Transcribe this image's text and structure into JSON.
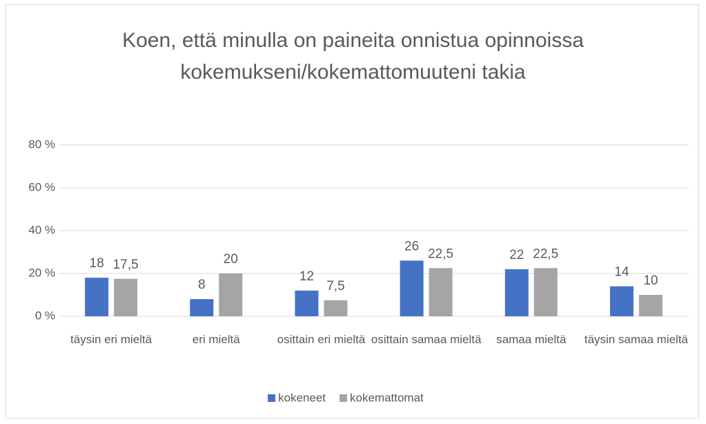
{
  "chart_data": {
    "type": "bar",
    "title": "Koen, että minulla on paineita onnistua opinnoissa kokemukseni/kokemattomuuteni takia",
    "categories": [
      "täysin eri mieltä",
      "eri mieltä",
      "osittain eri mieltä",
      "osittain samaa mieltä",
      "samaa mieltä",
      "täysin samaa mieltä"
    ],
    "series": [
      {
        "name": "kokeneet",
        "color": "#4472c4",
        "values": [
          18,
          8,
          12,
          26,
          22,
          14
        ]
      },
      {
        "name": "kokemattomat",
        "color": "#a5a5a5",
        "values": [
          17.5,
          20,
          7.5,
          22.5,
          22.5,
          10
        ],
        "value_labels": [
          "17,5",
          "20",
          "7,5",
          "22,5",
          "22,5",
          "10"
        ]
      }
    ],
    "ylim": [
      0,
      80
    ],
    "yticks": [
      {
        "value": 0,
        "label": "0 %"
      },
      {
        "value": 20,
        "label": "20 %"
      },
      {
        "value": 40,
        "label": "40 %"
      },
      {
        "value": 60,
        "label": "60 %"
      },
      {
        "value": 80,
        "label": "80 %"
      }
    ],
    "grid": true,
    "legend": "bottom"
  }
}
